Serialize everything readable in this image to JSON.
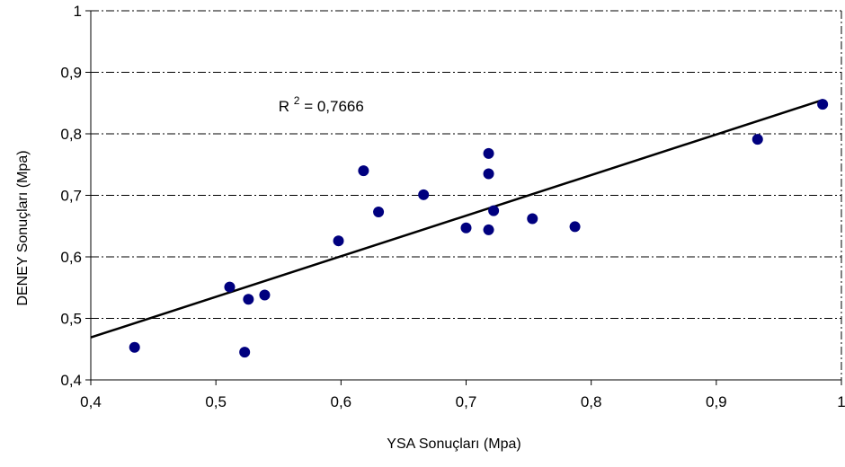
{
  "chart_data": {
    "type": "scatter",
    "title": "",
    "xlabel": "YSA Sonuçları (Mpa)",
    "ylabel": "DENEY Sonuçları (Mpa)",
    "xlim": [
      0.4,
      1.0
    ],
    "ylim": [
      0.4,
      1.0
    ],
    "x_ticks": [
      0.4,
      0.5,
      0.6,
      0.7,
      0.8,
      0.9,
      1.0
    ],
    "y_ticks": [
      0.4,
      0.5,
      0.6,
      0.7,
      0.8,
      0.9,
      1.0
    ],
    "x_tick_labels": [
      "0,4",
      "0,5",
      "0,6",
      "0,7",
      "0,8",
      "0,9",
      "1"
    ],
    "y_tick_labels": [
      "0,4",
      "0,5",
      "0,6",
      "0,7",
      "0,8",
      "0,9",
      "1"
    ],
    "grid": "horizontal dash-dot",
    "legend": "none",
    "marker_color": "#00007f",
    "trendline_color": "#000000",
    "series": [
      {
        "x": [
          0.435,
          0.511,
          0.523,
          0.526,
          0.539,
          0.598,
          0.618,
          0.63,
          0.666,
          0.7,
          0.718,
          0.718,
          0.718,
          0.722,
          0.753,
          0.787,
          0.933,
          0.985
        ],
        "y": [
          0.453,
          0.551,
          0.445,
          0.531,
          0.538,
          0.626,
          0.74,
          0.673,
          0.701,
          0.647,
          0.768,
          0.735,
          0.644,
          0.675,
          0.662,
          0.649,
          0.791,
          0.848
        ]
      }
    ],
    "trendline": {
      "type": "linear",
      "x": [
        0.4,
        0.985
      ],
      "y": [
        0.469,
        0.855
      ]
    },
    "annotation": {
      "r_label": "R",
      "r_power": "2",
      "r_value": " = 0,7666",
      "x": 0.55,
      "y": 0.845
    }
  }
}
